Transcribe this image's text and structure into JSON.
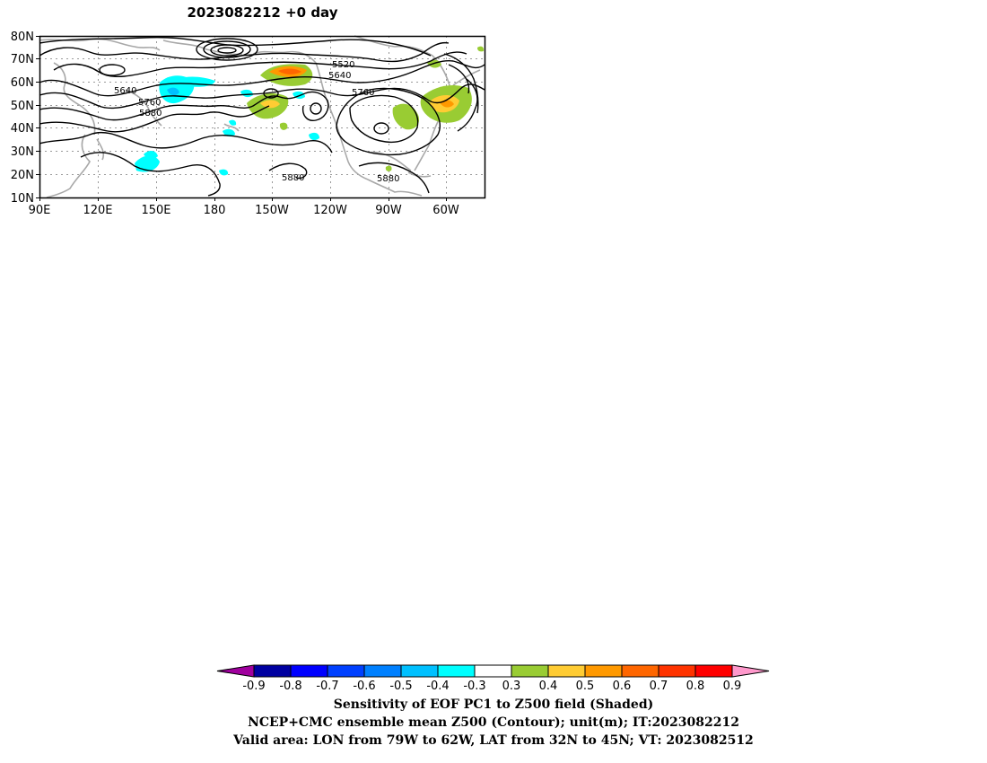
{
  "map": {
    "title": "2023082212  +0 day",
    "lat_ticks": [
      "80N",
      "70N",
      "60N",
      "50N",
      "40N",
      "30N",
      "20N",
      "10N"
    ],
    "lon_ticks": [
      "90E",
      "120E",
      "150E",
      "180",
      "150W",
      "120W",
      "90W",
      "60W"
    ],
    "contour_labels": [
      "5520",
      "5640",
      "5640",
      "5760",
      "5760",
      "5880",
      "5880",
      "5880"
    ],
    "coast_color": "#a8a8a8",
    "contour_color": "#000000"
  },
  "colorbar": {
    "ticks": [
      "-0.9",
      "-0.8",
      "-0.7",
      "-0.6",
      "-0.5",
      "-0.4",
      "-0.3",
      "0.3",
      "0.4",
      "0.5",
      "0.6",
      "0.7",
      "0.8",
      "0.9"
    ],
    "colors": [
      "#a0009e",
      "#0000a0",
      "#0000ff",
      "#0040ff",
      "#0080ff",
      "#00c0ff",
      "#00ffff",
      "#ffffff",
      "#99cc33",
      "#ffcc33",
      "#ff9900",
      "#ff6600",
      "#ff3300",
      "#ff0000",
      "#ff99cc"
    ]
  },
  "captions": {
    "line1": "Sensitivity of EOF PC1 to Z500 field (Shaded)",
    "line2": "NCEP+CMC ensemble mean Z500 (Contour); unit(m); IT:2023082212",
    "line3": "Valid area: LON from 79W to 62W, LAT from 32N to 45N; VT: 2023082512"
  }
}
